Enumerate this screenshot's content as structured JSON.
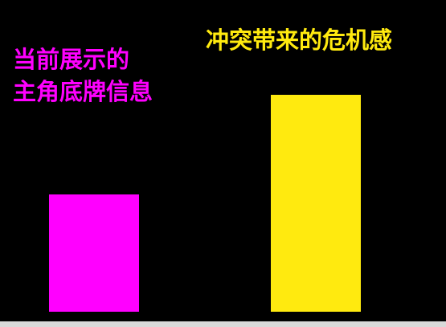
{
  "chart_data": {
    "type": "bar",
    "categories": [
      "当前展示的\n主角底牌信息",
      "冲突带来的危机感"
    ],
    "values": [
      146,
      270
    ],
    "colors": [
      "#ff00ff",
      "#ffea0f"
    ],
    "title": "",
    "xlabel": "",
    "ylabel": "",
    "grid": false,
    "legend": "none"
  }
}
